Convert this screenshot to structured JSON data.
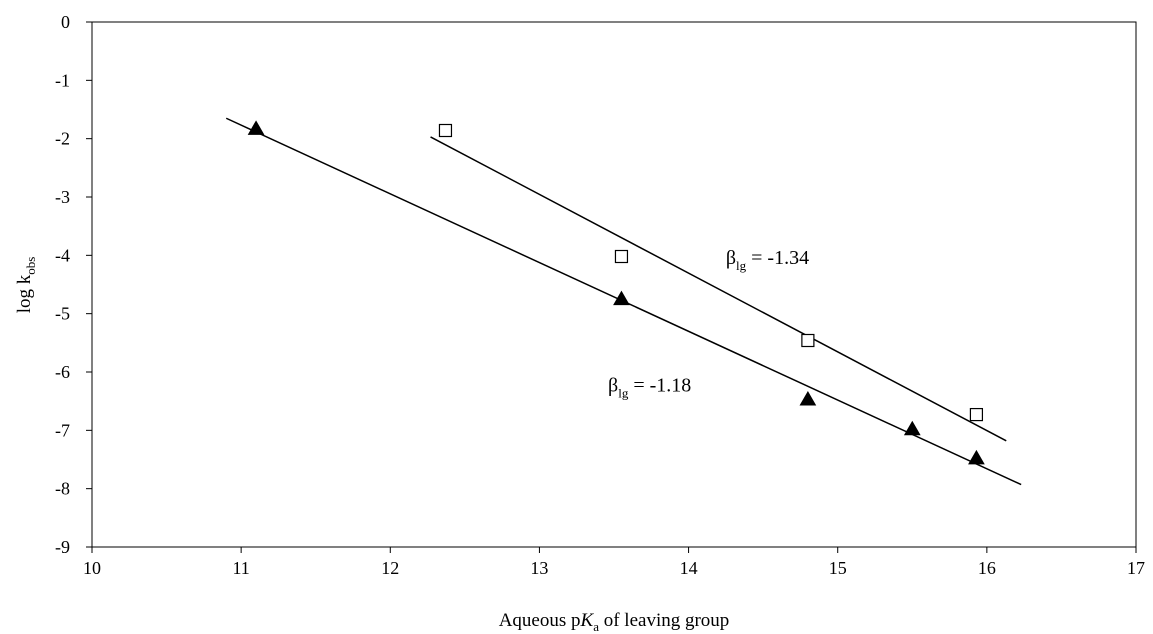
{
  "chart_data": {
    "type": "scatter",
    "title": "",
    "xlabel": {
      "pre": "Aqueous p",
      "italic": "K",
      "sub": "a",
      "post": " of leaving group"
    },
    "ylabel": {
      "main": "log k",
      "sub": "obs"
    },
    "xlim": [
      10,
      17
    ],
    "ylim": [
      -9,
      0
    ],
    "xticks": [
      "10",
      "11",
      "12",
      "13",
      "14",
      "15",
      "16",
      "17"
    ],
    "yticks": [
      "0",
      "-1",
      "-2",
      "-3",
      "-4",
      "-5",
      "-6",
      "-7",
      "-8",
      "-9"
    ],
    "grid": false,
    "legend": "none",
    "series": [
      {
        "marker": "open-square",
        "color": "#000000",
        "points": [
          [
            12.37,
            -1.86
          ],
          [
            13.55,
            -4.02
          ],
          [
            14.8,
            -5.46
          ],
          [
            15.93,
            -6.73
          ]
        ],
        "fit": {
          "x": [
            12.27,
            16.13
          ],
          "y": [
            -1.97,
            -7.18
          ]
        }
      },
      {
        "marker": "filled-triangle",
        "color": "#000000",
        "points": [
          [
            11.1,
            -1.84
          ],
          [
            13.55,
            -4.76
          ],
          [
            14.8,
            -6.48
          ],
          [
            15.5,
            -6.99
          ],
          [
            15.93,
            -7.49
          ]
        ],
        "fit": {
          "x": [
            10.9,
            16.23
          ],
          "y": [
            -1.65,
            -7.93
          ]
        }
      }
    ],
    "annotations": [
      {
        "beta": "β",
        "sub": "lg",
        "text": " = -1.34",
        "x": 14.25,
        "y": -4.15
      },
      {
        "beta": "β",
        "sub": "lg",
        "text": " = -1.18",
        "x": 13.46,
        "y": -6.33
      }
    ]
  }
}
